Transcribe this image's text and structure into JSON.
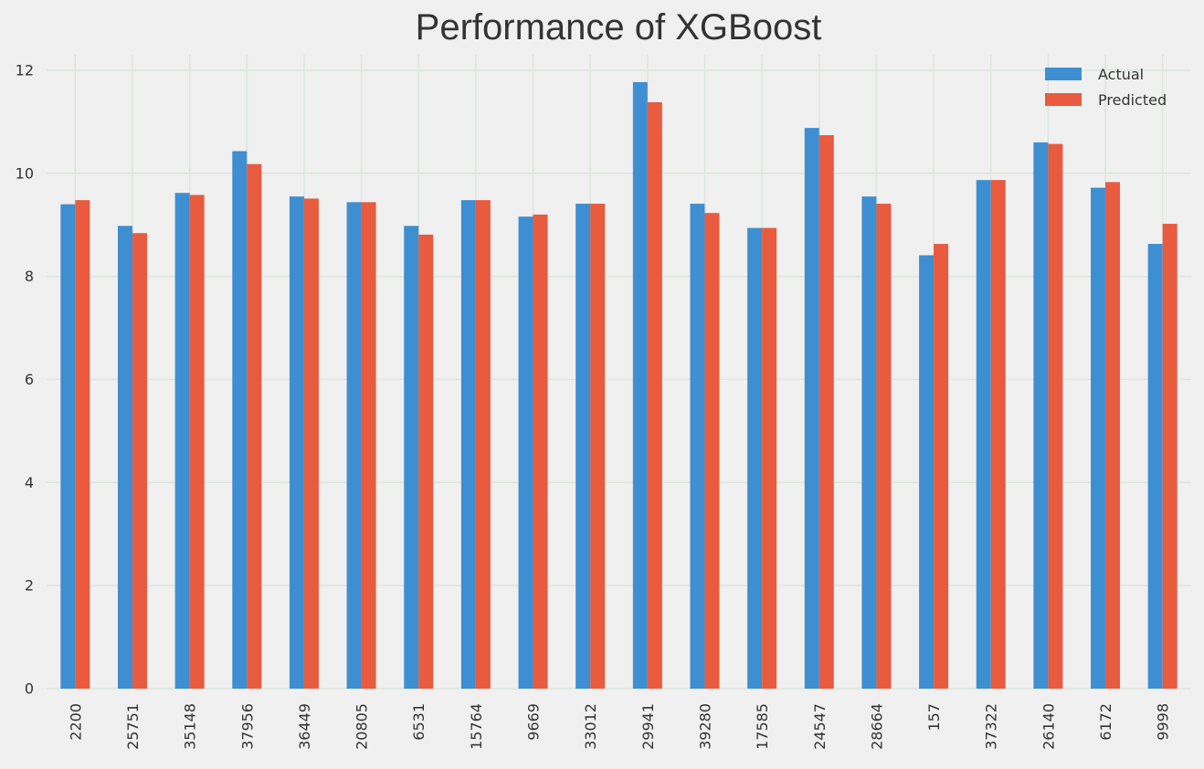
{
  "chart_data": {
    "type": "bar",
    "title": "Performance of XGBoost",
    "xlabel": "",
    "ylabel": "",
    "categories": [
      "2200",
      "25751",
      "35148",
      "37956",
      "36449",
      "20805",
      "6531",
      "15764",
      "9669",
      "33012",
      "29941",
      "39280",
      "17585",
      "24547",
      "28664",
      "157",
      "37322",
      "26140",
      "6172",
      "9998"
    ],
    "series": [
      {
        "name": "Actual",
        "color": "#3d8fd1",
        "values": [
          9.4,
          8.98,
          9.62,
          10.43,
          9.55,
          9.44,
          8.98,
          9.48,
          9.16,
          9.41,
          11.77,
          9.41,
          8.94,
          10.88,
          9.55,
          8.41,
          9.87,
          10.6,
          9.72,
          8.63
        ]
      },
      {
        "name": "Predicted",
        "color": "#e85b3f",
        "values": [
          9.48,
          8.84,
          9.58,
          10.18,
          9.51,
          9.44,
          8.81,
          9.48,
          9.2,
          9.41,
          11.38,
          9.23,
          8.94,
          10.74,
          9.41,
          8.63,
          9.87,
          10.57,
          9.83,
          9.02
        ]
      }
    ],
    "ylim": [
      0,
      12.3
    ],
    "yticks": [
      0,
      2,
      4,
      6,
      8,
      10,
      12
    ],
    "grid": true,
    "legend_position": "top-right"
  }
}
